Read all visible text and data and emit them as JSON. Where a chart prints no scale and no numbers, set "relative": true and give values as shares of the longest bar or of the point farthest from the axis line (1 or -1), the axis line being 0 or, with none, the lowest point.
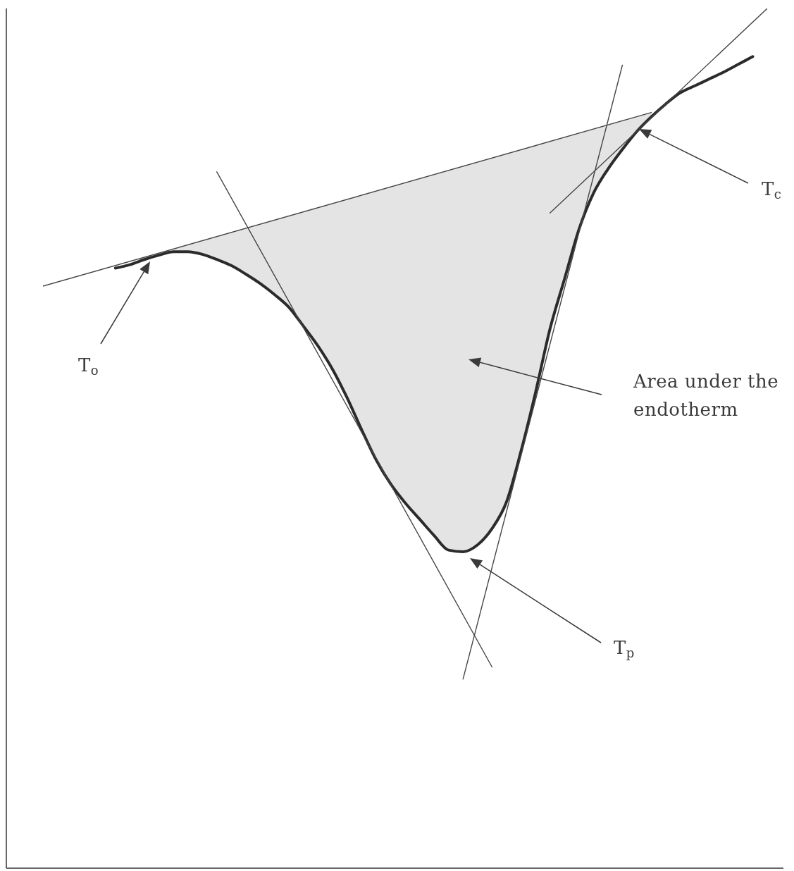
{
  "chart_data": {
    "type": "line",
    "relative": true,
    "tick_labels": false,
    "categories": [
      null,
      null,
      null,
      null,
      null,
      null,
      null,
      null,
      null,
      null,
      null,
      null,
      null,
      null,
      null,
      null,
      null,
      null,
      null,
      null,
      null,
      null,
      null,
      null,
      null,
      null,
      null,
      null,
      null,
      null,
      null,
      null,
      null,
      null,
      null,
      null,
      null,
      null,
      null,
      null,
      null,
      null,
      null,
      null,
      null,
      null,
      null,
      null,
      null,
      null,
      null
    ],
    "series": [
      {
        "color": "#2b2b2b",
        "values": [
          null,
          null,
          null,
          null,
          null,
          0.698,
          0.702,
          0.708,
          0.713,
          0.717,
          0.717,
          0.714,
          0.708,
          0.701,
          0.691,
          0.68,
          0.667,
          0.652,
          0.63,
          0.607,
          0.58,
          0.547,
          0.51,
          0.475,
          0.447,
          0.425,
          0.406,
          0.387,
          0.37,
          0.368,
          0.376,
          0.395,
          0.426,
          0.485,
          0.553,
          0.627,
          0.685,
          0.743,
          0.785,
          0.813,
          0.836,
          0.857,
          0.874,
          0.889,
          0.902,
          0.91,
          0.918,
          0.926,
          0.935,
          0.944,
          null
        ],
        "lower": [
          null,
          null,
          null,
          null,
          null,
          null,
          null,
          null,
          null,
          0.717,
          0.717,
          0.714,
          0.708,
          0.701,
          0.691,
          0.68,
          0.667,
          0.652,
          0.63,
          0.607,
          0.58,
          0.547,
          0.51,
          0.475,
          0.447,
          0.425,
          0.406,
          0.387,
          0.37,
          0.368,
          0.376,
          0.395,
          0.426,
          0.485,
          0.553,
          0.627,
          0.685,
          0.743,
          0.785,
          0.813,
          0.836,
          0.857,
          0.874,
          null,
          null,
          null,
          null,
          null,
          null,
          null,
          null
        ],
        "upper": [
          null,
          null,
          null,
          null,
          null,
          null,
          null,
          null,
          null,
          0.72,
          0.725,
          0.73,
          0.735,
          0.74,
          0.744,
          0.749,
          0.754,
          0.759,
          0.764,
          0.769,
          0.773,
          0.778,
          0.783,
          0.788,
          0.793,
          0.797,
          0.802,
          0.807,
          0.812,
          0.817,
          0.821,
          0.826,
          0.831,
          0.836,
          0.841,
          0.846,
          0.85,
          0.855,
          0.86,
          0.865,
          0.87,
          0.874,
          0.879,
          null,
          null,
          null,
          null,
          null,
          null,
          null,
          null
        ]
      },
      {
        "color": "#454545",
        "values": [
          0.677,
          null,
          null,
          null,
          null,
          null,
          null,
          null,
          null,
          null,
          null,
          null,
          null,
          null,
          null,
          null,
          null,
          null,
          null,
          null,
          null,
          null,
          null,
          null,
          null,
          null,
          null,
          null,
          null,
          null,
          null,
          null,
          null,
          null,
          null,
          null,
          null,
          null,
          null,
          null,
          null,
          null,
          0.879,
          null,
          null,
          null,
          null,
          null,
          null,
          null,
          null
        ]
      },
      {
        "color": "#454545",
        "values": [
          null,
          null,
          null,
          null,
          null,
          null,
          null,
          null,
          null,
          null,
          null,
          null,
          0.81,
          null,
          null,
          null,
          null,
          null,
          null,
          null,
          null,
          null,
          null,
          null,
          null,
          null,
          null,
          null,
          null,
          null,
          null,
          0.234,
          null,
          null,
          null,
          null,
          null,
          null,
          null,
          null,
          null,
          null,
          null,
          null,
          null,
          null,
          null,
          null,
          null,
          null,
          null
        ]
      },
      {
        "color": "#454545",
        "values": [
          null,
          null,
          null,
          null,
          null,
          null,
          null,
          null,
          null,
          null,
          null,
          null,
          null,
          null,
          null,
          null,
          null,
          null,
          null,
          null,
          null,
          null,
          null,
          null,
          null,
          null,
          null,
          null,
          null,
          0.22,
          null,
          null,
          null,
          null,
          null,
          null,
          null,
          null,
          null,
          null,
          0.934,
          null,
          null,
          null,
          null,
          null,
          null,
          null,
          null,
          null,
          null
        ]
      },
      {
        "color": "#454545",
        "values": [
          null,
          null,
          null,
          null,
          null,
          null,
          null,
          null,
          null,
          null,
          null,
          null,
          null,
          null,
          null,
          null,
          null,
          null,
          null,
          null,
          null,
          null,
          null,
          null,
          null,
          null,
          null,
          null,
          null,
          null,
          null,
          null,
          null,
          null,
          null,
          0.762,
          null,
          null,
          null,
          null,
          null,
          null,
          null,
          null,
          null,
          null,
          null,
          null,
          null,
          null,
          1.0
        ]
      }
    ],
    "annotations": [
      "T$_{o}$",
      "T$_{c}$",
      "T$_{p}$",
      "Area under the endotherm"
    ]
  }
}
